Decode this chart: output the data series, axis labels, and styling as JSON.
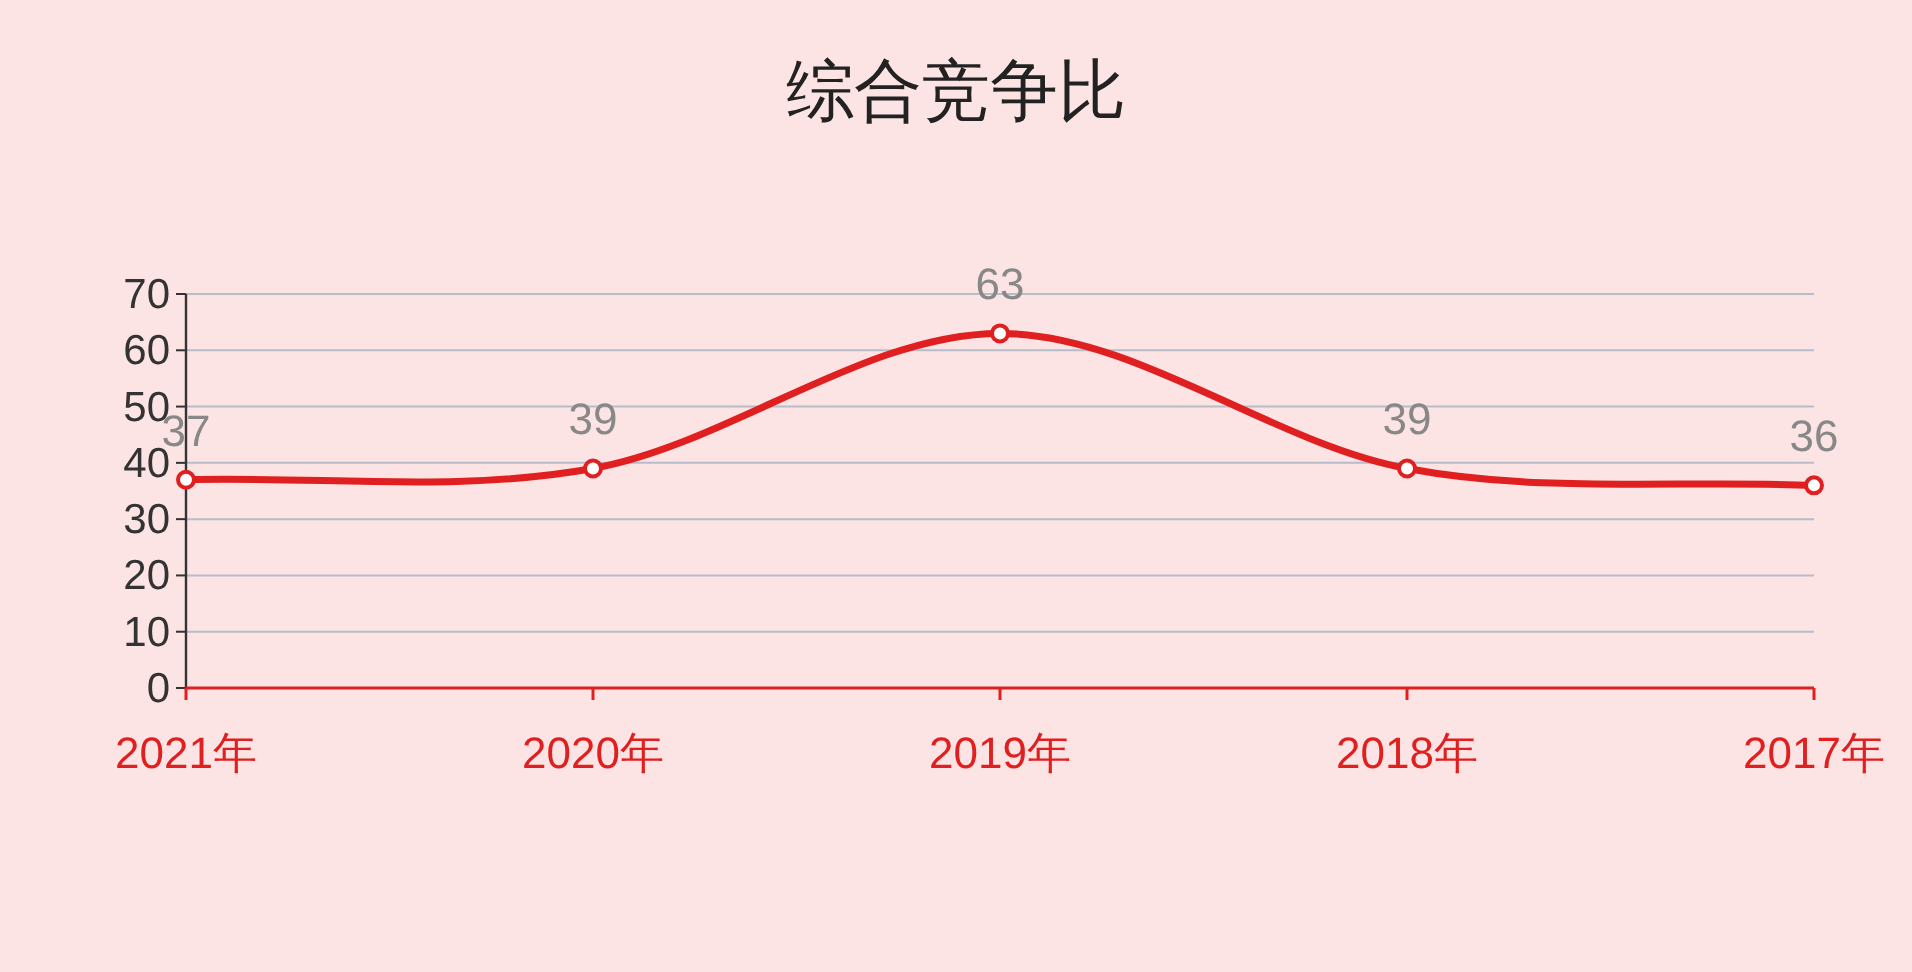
{
  "chart_data": {
    "type": "line",
    "title": "综合竞争比",
    "categories": [
      "2021年",
      "2020年",
      "2019年",
      "2018年",
      "2017年"
    ],
    "series": [
      {
        "color": "#e02020",
        "values": [
          37,
          39,
          63,
          39,
          36
        ]
      }
    ],
    "ylim": [
      0,
      70
    ],
    "yticks": [
      0,
      10,
      20,
      30,
      40,
      50,
      60,
      70
    ],
    "grid": "y",
    "marker": "circle",
    "line_style": "solid",
    "data_labels": true
  }
}
